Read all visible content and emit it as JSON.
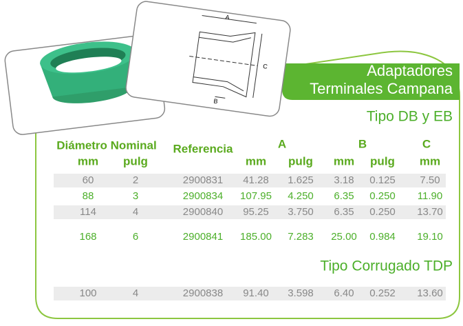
{
  "header": {
    "title_lines": [
      "Adaptadores",
      "Terminales Campana"
    ]
  },
  "diagram": {
    "labels": [
      "A",
      "B",
      "C"
    ]
  },
  "table": {
    "diameter": "Diámetro Nominal",
    "reference": "Referencia",
    "groups": [
      "A",
      "B",
      "C"
    ],
    "subheaders": [
      "mm",
      "pulg",
      "mm",
      "pulg",
      "mm",
      "pulg",
      "mm"
    ]
  },
  "sections": [
    {
      "title": "Tipo DB y EB",
      "rows": [
        [
          "60",
          "2",
          "2900831",
          "41.28",
          "1.625",
          "3.18",
          "0.125",
          "7.50"
        ],
        [
          "88",
          "3",
          "2900834",
          "107.95",
          "4.250",
          "6.35",
          "0.250",
          "11.90"
        ],
        [
          "114",
          "4",
          "2900840",
          "95.25",
          "3.750",
          "6.35",
          "0.250",
          "13.70"
        ],
        [
          "168",
          "6",
          "2900841",
          "185.00",
          "7.283",
          "25.00",
          "0.984",
          "19.10"
        ]
      ]
    },
    {
      "title": "Tipo Corrugado TDP",
      "rows": [
        [
          "100",
          "4",
          "2900838",
          "91.40",
          "3.598",
          "6.40",
          "0.252",
          "13.60"
        ]
      ]
    }
  ]
}
